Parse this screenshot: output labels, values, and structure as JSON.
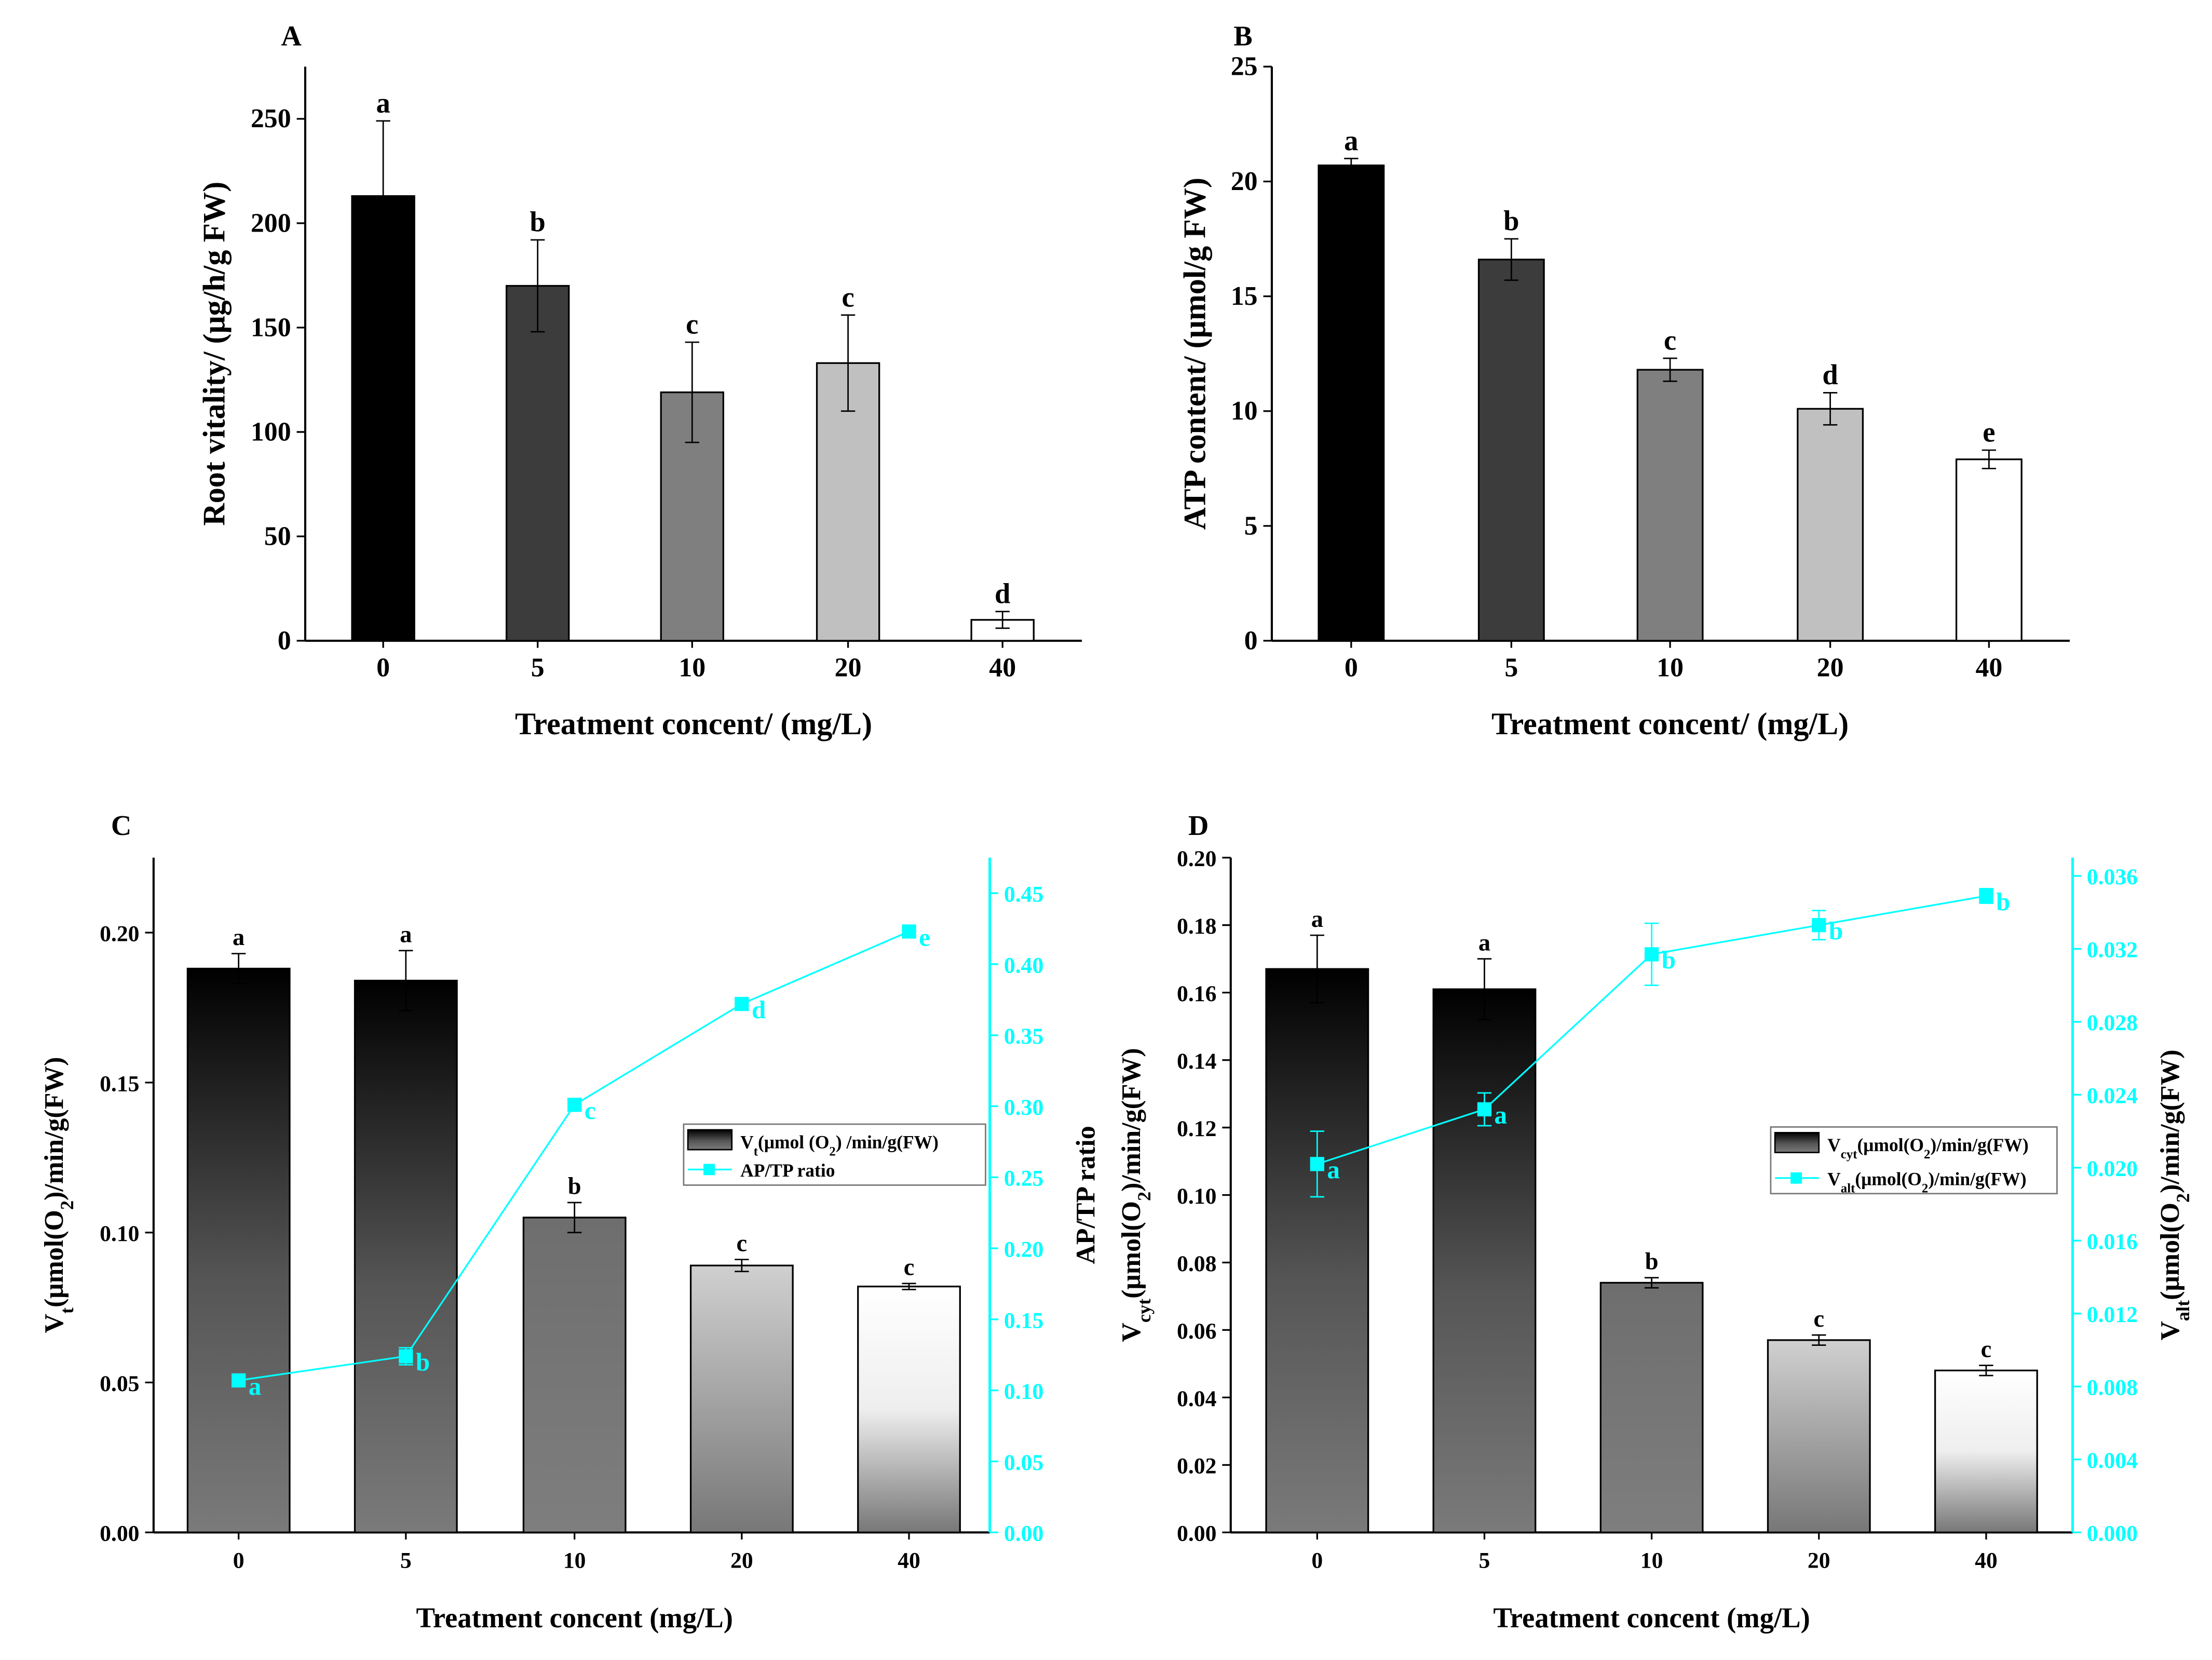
{
  "chart_data": [
    {
      "panel": "A",
      "type": "bar",
      "categories": [
        "0",
        "5",
        "10",
        "20",
        "40"
      ],
      "values": [
        213,
        170,
        119,
        133,
        10
      ],
      "errors": [
        36,
        22,
        24,
        23,
        4
      ],
      "letters": [
        "a",
        "b",
        "c",
        "c",
        "d"
      ],
      "fills": [
        "#000000",
        "#3c3c3c",
        "#7f7f7f",
        "#c0c0c0",
        "#ffffff"
      ],
      "ylim": [
        0,
        275
      ],
      "yticks": [
        0,
        50,
        100,
        150,
        200,
        250
      ],
      "ylabel": [
        {
          "t": "Root vitality/ (μg/h/g FW)"
        }
      ],
      "xlabel": "Treatment concent/ (mg/L)"
    },
    {
      "panel": "B",
      "type": "bar",
      "categories": [
        "0",
        "5",
        "10",
        "20",
        "40"
      ],
      "values": [
        20.7,
        16.6,
        11.8,
        10.1,
        7.9
      ],
      "errors": [
        0.3,
        0.9,
        0.5,
        0.7,
        0.4
      ],
      "letters": [
        "a",
        "b",
        "c",
        "d",
        "e"
      ],
      "fills": [
        "#000000",
        "#3c3c3c",
        "#7f7f7f",
        "#c0c0c0",
        "#ffffff"
      ],
      "ylim": [
        0,
        25
      ],
      "yticks": [
        0,
        5,
        10,
        15,
        20,
        25
      ],
      "ylabel": [
        {
          "t": "ATP content/ (μmol/g FW)"
        }
      ],
      "xlabel": "Treatment concent/ (mg/L)"
    },
    {
      "panel": "C",
      "type": "bar+line",
      "categories": [
        "0",
        "5",
        "10",
        "20",
        "40"
      ],
      "values": [
        0.188,
        0.184,
        0.105,
        0.089,
        0.082
      ],
      "errors": [
        0.005,
        0.01,
        0.005,
        0.002,
        0.001
      ],
      "letters": [
        "a",
        "a",
        "b",
        "c",
        "c"
      ],
      "ylim": [
        0,
        0.225
      ],
      "yticks": [
        "0.00",
        "0.05",
        "0.10",
        "0.15",
        "0.20"
      ],
      "ylabel": [
        {
          "t": "V"
        },
        {
          "t": "t",
          "sub": true
        },
        {
          "t": "(μmol(O"
        },
        {
          "t": "2",
          "sub": true
        },
        {
          "t": ")/min/g(FW)"
        }
      ],
      "line": {
        "values": [
          0.107,
          0.124,
          0.301,
          0.372,
          0.423
        ],
        "errors": [
          0.003,
          0.006,
          0.004,
          0.003,
          0.003
        ],
        "letters": [
          "a",
          "b",
          "c",
          "d",
          "e"
        ],
        "ylim": [
          0,
          0.475
        ],
        "yticks": [
          "0.00",
          "0.05",
          "0.10",
          "0.15",
          "0.20",
          "0.25",
          "0.30",
          "0.35",
          "0.40",
          "0.45"
        ],
        "ylabel": [
          {
            "t": "AP/TP ratio"
          }
        ],
        "color": "#00ffff",
        "ylabel_color": "#000000"
      },
      "legend": {
        "bar": [
          {
            "t": "V"
          },
          {
            "t": "t",
            "sub": true
          },
          {
            "t": "(μmol (O"
          },
          {
            "t": "2",
            "sub": true
          },
          {
            "t": ") /min/g(FW)"
          }
        ],
        "line": [
          {
            "t": "AP/TP ratio"
          }
        ]
      },
      "xlabel": "Treatment concent (mg/L)"
    },
    {
      "panel": "D",
      "type": "bar+line",
      "categories": [
        "0",
        "5",
        "10",
        "20",
        "40"
      ],
      "values": [
        0.167,
        0.161,
        0.074,
        0.057,
        0.048
      ],
      "errors": [
        0.01,
        0.009,
        0.0015,
        0.0015,
        0.0015
      ],
      "letters": [
        "a",
        "a",
        "b",
        "c",
        "c"
      ],
      "ylim": [
        0,
        0.2
      ],
      "yticks": [
        "0.00",
        "0.02",
        "0.04",
        "0.06",
        "0.08",
        "0.10",
        "0.12",
        "0.14",
        "0.16",
        "0.18",
        "0.20"
      ],
      "ylabel": [
        {
          "t": "V"
        },
        {
          "t": "cyt",
          "sub": true
        },
        {
          "t": "(μmol(O"
        },
        {
          "t": "2",
          "sub": true
        },
        {
          "t": ")/min/g(FW)"
        }
      ],
      "line": {
        "values": [
          0.0202,
          0.0232,
          0.0317,
          0.0333,
          0.0349
        ],
        "errors": [
          0.0018,
          0.0009,
          0.0017,
          0.0008,
          0.0004
        ],
        "letters": [
          "a",
          "a",
          "b",
          "b",
          "b"
        ],
        "ylim": [
          0,
          0.037
        ],
        "yticks": [
          "0.000",
          "0.004",
          "0.008",
          "0.012",
          "0.016",
          "0.020",
          "0.024",
          "0.028",
          "0.032",
          "0.036"
        ],
        "ylabel": [
          {
            "t": "V"
          },
          {
            "t": "alt",
            "sub": true
          },
          {
            "t": "(μmol(O"
          },
          {
            "t": "2",
            "sub": true
          },
          {
            "t": ")/min/g(FW)"
          }
        ],
        "color": "#00ffff",
        "ylabel_color": "#000000"
      },
      "legend": {
        "bar": [
          {
            "t": "V"
          },
          {
            "t": "cyt",
            "sub": true
          },
          {
            "t": "(μmol(O"
          },
          {
            "t": "2",
            "sub": true
          },
          {
            "t": ")/min/g(FW)"
          }
        ],
        "line": [
          {
            "t": "V"
          },
          {
            "t": "alt",
            "sub": true
          },
          {
            "t": "(μmol(O"
          },
          {
            "t": "2",
            "sub": true
          },
          {
            "t": ")/min/g(FW)"
          }
        ]
      },
      "xlabel": "Treatment concent (mg/L)"
    }
  ]
}
